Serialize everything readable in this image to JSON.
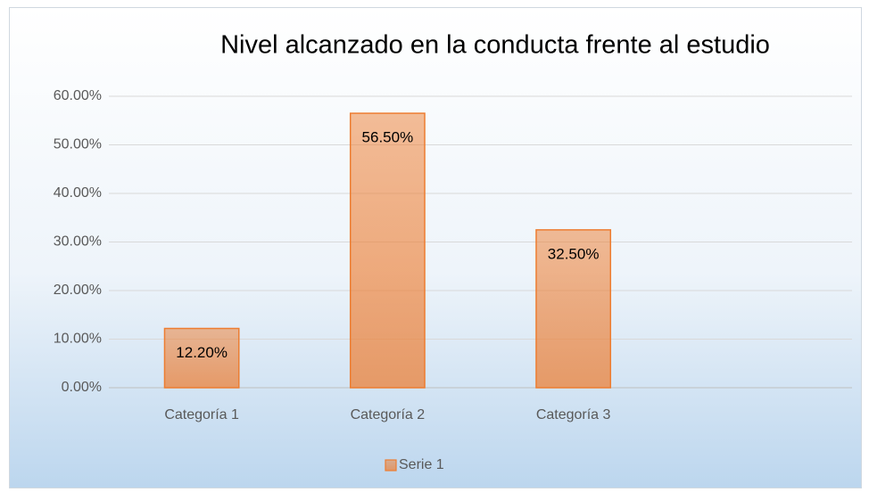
{
  "chart_data": {
    "type": "bar",
    "title": "Nivel alcanzado en la conducta frente al estudio",
    "categories": [
      "Categoría 1",
      "Categoría 2",
      "Categoría 3",
      null
    ],
    "series": [
      {
        "name": "Serie 1",
        "color": "#ed7d31",
        "values": [
          12.2,
          56.5,
          32.5,
          null
        ],
        "value_labels": [
          "12.20%",
          "56.50%",
          "32.50%",
          null
        ]
      }
    ],
    "ylim": [
      0,
      60
    ],
    "yticks": [
      {
        "value": 0,
        "label": "0.00%"
      },
      {
        "value": 10,
        "label": "10.00%"
      },
      {
        "value": 20,
        "label": "20.00%"
      },
      {
        "value": 30,
        "label": "30.00%"
      },
      {
        "value": 40,
        "label": "40.00%"
      },
      {
        "value": 50,
        "label": "50.00%"
      },
      {
        "value": 60,
        "label": "60.00%"
      }
    ],
    "grid": true,
    "legend": "bottom"
  }
}
